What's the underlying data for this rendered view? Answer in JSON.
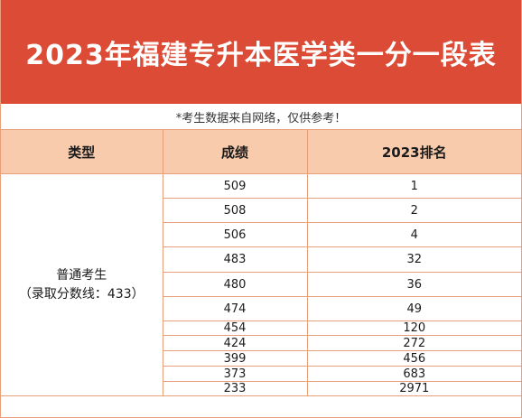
{
  "title": "2023年福建专升本医学类一分一段表",
  "note": "*考生数据来自网络，仅供参考！",
  "table": {
    "headers": [
      "类型",
      "成绩",
      "2023排名"
    ],
    "category_line1": "普通考生",
    "category_line2": "（录取分数线：433）",
    "rows": [
      {
        "score": "509",
        "rank": "1"
      },
      {
        "score": "508",
        "rank": "2"
      },
      {
        "score": "506",
        "rank": "4"
      },
      {
        "score": "483",
        "rank": "32"
      },
      {
        "score": "480",
        "rank": "36"
      },
      {
        "score": "474",
        "rank": "49"
      },
      {
        "score": "454",
        "rank": "120"
      },
      {
        "score": "424",
        "rank": "272"
      },
      {
        "score": "399",
        "rank": "456"
      },
      {
        "score": "373",
        "rank": "683"
      },
      {
        "score": "233",
        "rank": "2971"
      }
    ]
  },
  "colors": {
    "title_background": "#dc4b36",
    "header_background": "#f8cbad",
    "grid_line": "#e8a07a"
  }
}
